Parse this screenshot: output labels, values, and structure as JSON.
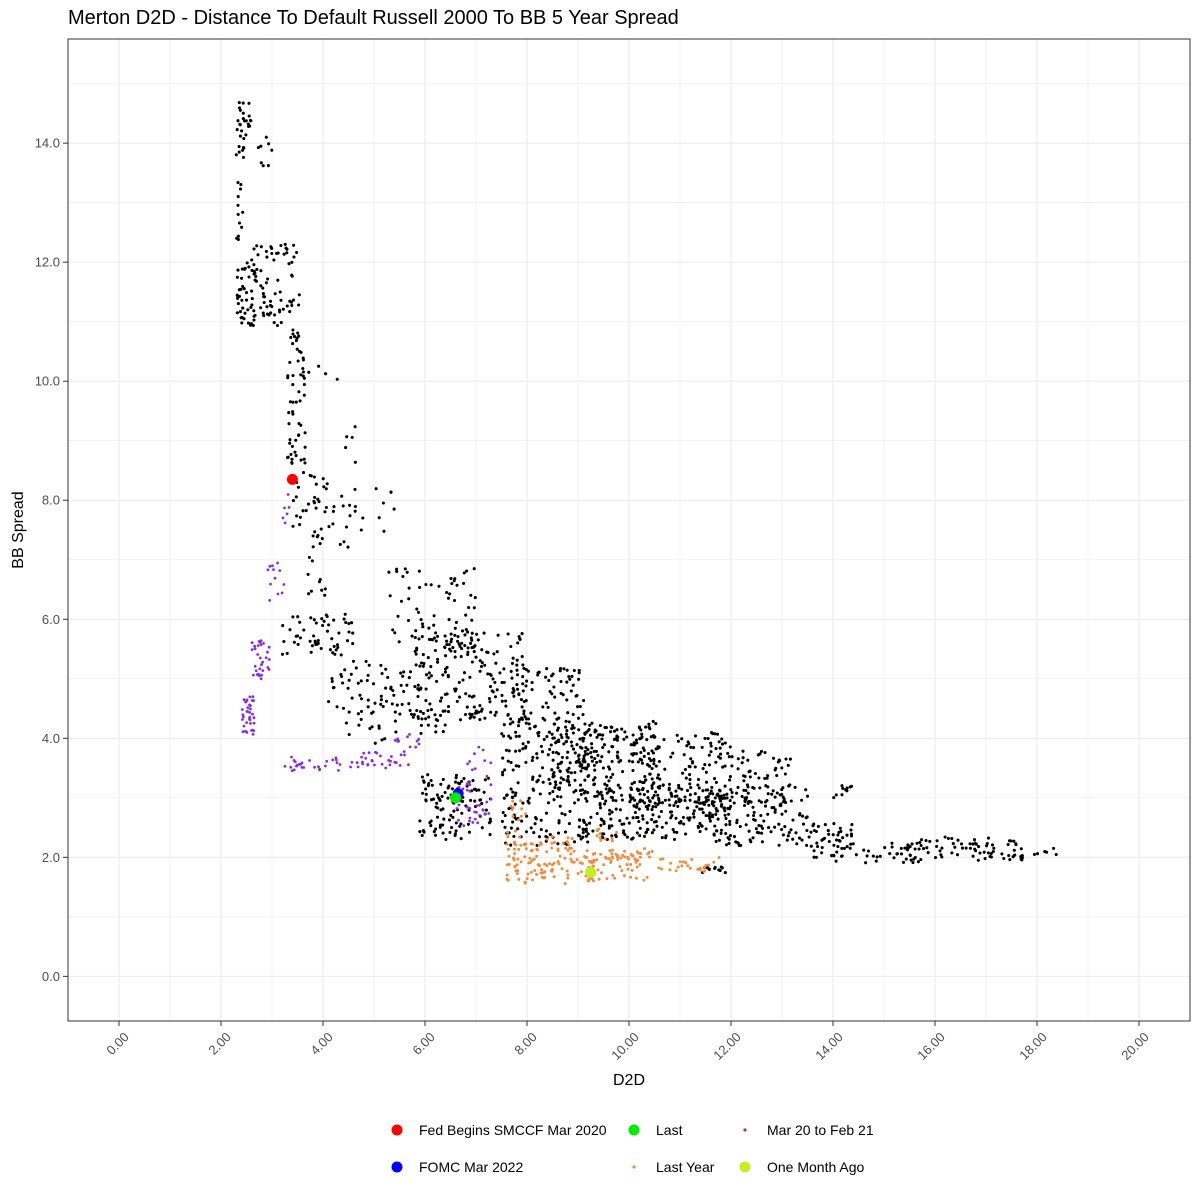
{
  "chart_data": {
    "type": "scatter",
    "title": "Merton D2D - Distance To Default Russell 2000 To BB 5 Year Spread",
    "xlabel": "D2D",
    "ylabel": "BB Spread",
    "xlim": [
      -1,
      21
    ],
    "ylim": [
      -0.75,
      15.75
    ],
    "x_ticks": [
      0,
      2,
      4,
      6,
      8,
      10,
      12,
      14,
      16,
      18,
      20
    ],
    "x_tick_labels": [
      "0.00",
      "2.00",
      "4.00",
      "6.00",
      "8.00",
      "10.00",
      "12.00",
      "14.00",
      "16.00",
      "18.00",
      "20.00"
    ],
    "y_ticks": [
      0,
      2,
      4,
      6,
      8,
      10,
      12,
      14
    ],
    "y_tick_labels": [
      "0.0",
      "2.0",
      "4.0",
      "6.0",
      "8.0",
      "10.0",
      "12.0",
      "14.0"
    ],
    "grid": true,
    "legend_position": "bottom",
    "colors": {
      "history": "#000000",
      "fed_smccf": "#ff0000",
      "fomc": "#0000ff",
      "last": "#00ee00",
      "last_year": "#f08c3c",
      "mar20_feb21": "#8a2be2",
      "one_month_ago": "#c0f020",
      "grid": "#ebebeb",
      "panel_border": "#333333"
    },
    "legend": [
      {
        "key": "fed_smccf",
        "label": "Fed Begins SMCCF Mar 2020",
        "size": "large"
      },
      {
        "key": "last",
        "label": "Last",
        "size": "large"
      },
      {
        "key": "mar20_feb21",
        "label": "Mar 20 to Feb 21",
        "size": "small"
      },
      {
        "key": "fomc",
        "label": "FOMC Mar 2022",
        "size": "large"
      },
      {
        "key": "last_year",
        "label": "Last Year",
        "size": "small"
      },
      {
        "key": "one_month_ago",
        "label": "One Month Ago",
        "size": "large"
      }
    ],
    "highlight_points": [
      {
        "key": "fed_smccf",
        "name": "Fed Begins SMCCF Mar 2020",
        "x": 3.4,
        "y": 8.35
      },
      {
        "key": "fomc",
        "name": "FOMC Mar 2022",
        "x": 6.65,
        "y": 3.07
      },
      {
        "key": "last",
        "name": "Last",
        "x": 6.6,
        "y": 3.0
      },
      {
        "key": "one_month_ago",
        "name": "One Month Ago",
        "x": 9.25,
        "y": 1.75
      }
    ],
    "series": [
      {
        "name": "Mar 20 to Feb 21",
        "key": "mar20_feb21",
        "clusters": [
          {
            "x": [
              3.2,
              3.4
            ],
            "y": [
              7.6,
              8.1
            ],
            "n": 6
          },
          {
            "x": [
              2.9,
              3.25
            ],
            "y": [
              6.3,
              6.95
            ],
            "n": 12
          },
          {
            "x": [
              2.6,
              2.95
            ],
            "y": [
              5.0,
              5.65
            ],
            "n": 30
          },
          {
            "x": [
              2.4,
              2.65
            ],
            "y": [
              4.05,
              4.7
            ],
            "n": 35
          },
          {
            "x": [
              3.2,
              4.4
            ],
            "y": [
              3.45,
              3.7
            ],
            "n": 28
          },
          {
            "x": [
              4.4,
              5.6
            ],
            "y": [
              3.5,
              3.78
            ],
            "n": 28
          },
          {
            "x": [
              5.4,
              5.9
            ],
            "y": [
              3.55,
              4.15
            ],
            "n": 14
          },
          {
            "x": [
              6.6,
              7.3
            ],
            "y": [
              2.5,
              3.3
            ],
            "n": 30
          },
          {
            "x": [
              6.8,
              7.3
            ],
            "y": [
              3.3,
              3.9
            ],
            "n": 10
          }
        ]
      },
      {
        "name": "Last Year",
        "key": "last_year",
        "clusters": [
          {
            "x": [
              7.6,
              9.0
            ],
            "y": [
              1.55,
              2.35
            ],
            "n": 110
          },
          {
            "x": [
              9.0,
              10.5
            ],
            "y": [
              1.6,
              2.15
            ],
            "n": 85
          },
          {
            "x": [
              10.5,
              11.9
            ],
            "y": [
              1.75,
              2.0
            ],
            "n": 25
          },
          {
            "x": [
              7.6,
              8.1
            ],
            "y": [
              2.35,
              2.95
            ],
            "n": 12
          },
          {
            "x": [
              9.3,
              9.8
            ],
            "y": [
              2.2,
              2.55
            ],
            "n": 10
          }
        ]
      },
      {
        "name": "History",
        "key": "history",
        "clusters": [
          {
            "x": [
              2.3,
              2.6
            ],
            "y": [
              14.1,
              14.7
            ],
            "n": 22
          },
          {
            "x": [
              2.3,
              2.45
            ],
            "y": [
              12.3,
              14.2
            ],
            "n": 20
          },
          {
            "x": [
              2.7,
              3.0
            ],
            "y": [
              13.6,
              14.1
            ],
            "n": 8
          },
          {
            "x": [
              2.3,
              2.7
            ],
            "y": [
              10.8,
              12.0
            ],
            "n": 45
          },
          {
            "x": [
              2.6,
              3.6
            ],
            "y": [
              10.9,
              12.3
            ],
            "n": 70
          },
          {
            "x": [
              3.3,
              3.65
            ],
            "y": [
              8.6,
              10.9
            ],
            "n": 55
          },
          {
            "x": [
              3.5,
              4.3
            ],
            "y": [
              9.9,
              10.3
            ],
            "n": 6
          },
          {
            "x": [
              4.3,
              4.9
            ],
            "y": [
              8.6,
              9.4
            ],
            "n": 5
          },
          {
            "x": [
              3.4,
              4.2
            ],
            "y": [
              7.4,
              8.5
            ],
            "n": 35
          },
          {
            "x": [
              4.2,
              5.4
            ],
            "y": [
              7.2,
              8.2
            ],
            "n": 22
          },
          {
            "x": [
              3.7,
              4.1
            ],
            "y": [
              6.3,
              7.4
            ],
            "n": 14
          },
          {
            "x": [
              3.2,
              4.6
            ],
            "y": [
              5.4,
              6.1
            ],
            "n": 55
          },
          {
            "x": [
              4.1,
              6.0
            ],
            "y": [
              4.4,
              5.3
            ],
            "n": 60
          },
          {
            "x": [
              4.4,
              6.4
            ],
            "y": [
              3.9,
              4.6
            ],
            "n": 35
          },
          {
            "x": [
              5.2,
              7.0
            ],
            "y": [
              5.6,
              6.9
            ],
            "n": 60
          },
          {
            "x": [
              5.8,
              8.0
            ],
            "y": [
              4.3,
              5.8
            ],
            "n": 190
          },
          {
            "x": [
              7.5,
              9.2
            ],
            "y": [
              3.6,
              5.2
            ],
            "n": 140
          },
          {
            "x": [
              8.5,
              10.6
            ],
            "y": [
              3.0,
              4.3
            ],
            "n": 210
          },
          {
            "x": [
              10.2,
              12.0
            ],
            "y": [
              2.8,
              4.1
            ],
            "n": 140
          },
          {
            "x": [
              11.8,
              13.2
            ],
            "y": [
              2.8,
              3.8
            ],
            "n": 60
          },
          {
            "x": [
              5.9,
              7.3
            ],
            "y": [
              2.3,
              3.4
            ],
            "n": 110
          },
          {
            "x": [
              7.5,
              9.2
            ],
            "y": [
              2.2,
              3.6
            ],
            "n": 130
          },
          {
            "x": [
              9.0,
              12.0
            ],
            "y": [
              2.3,
              3.2
            ],
            "n": 220
          },
          {
            "x": [
              11.5,
              13.5
            ],
            "y": [
              2.2,
              3.2
            ],
            "n": 120
          },
          {
            "x": [
              13.4,
              14.4
            ],
            "y": [
              2.0,
              2.6
            ],
            "n": 45
          },
          {
            "x": [
              14.0,
              16.0
            ],
            "y": [
              1.9,
              2.3
            ],
            "n": 55
          },
          {
            "x": [
              16.0,
              17.6
            ],
            "y": [
              1.95,
              2.35
            ],
            "n": 55
          },
          {
            "x": [
              17.6,
              18.4
            ],
            "y": [
              1.95,
              2.15
            ],
            "n": 12
          },
          {
            "x": [
              11.4,
              11.9
            ],
            "y": [
              1.72,
              1.85
            ],
            "n": 12
          },
          {
            "x": [
              14.0,
              14.4
            ],
            "y": [
              3.0,
              3.25
            ],
            "n": 10
          }
        ]
      }
    ]
  }
}
